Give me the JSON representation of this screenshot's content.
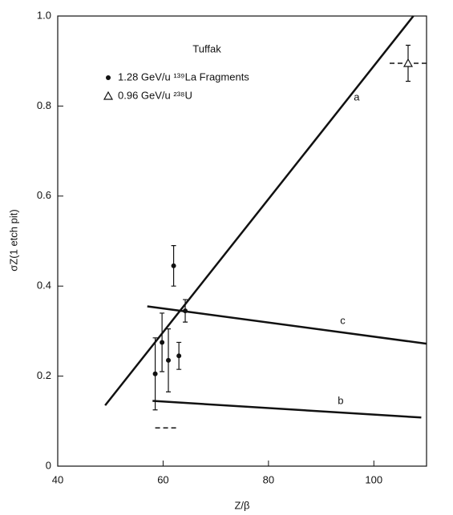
{
  "chart_data": {
    "type": "scatter",
    "xlabel": "Z/β",
    "ylabel": "σZ(1 etch pit)",
    "xlim": [
      40,
      110
    ],
    "ylim": [
      0,
      1
    ],
    "xticks": [
      40,
      60,
      80,
      100
    ],
    "yticks": [
      0,
      0.2,
      0.4,
      0.6,
      0.8,
      {
        "value": 1,
        "label": "1.0"
      }
    ],
    "legend_title": "Tuffak",
    "series": [
      {
        "name": "1.28 GeV/u ¹³⁹La Fragments",
        "marker": "filled-circle",
        "color": "#111111",
        "x": [
          58.5,
          59.8,
          61,
          62,
          63,
          64.2
        ],
        "values": [
          0.205,
          0.275,
          0.235,
          0.445,
          0.245,
          0.345
        ],
        "yerr": [
          0.08,
          0.065,
          0.07,
          0.045,
          0.03,
          0.025
        ]
      },
      {
        "name": "0.96 GeV/u ²³⁸U",
        "marker": "open-triangle",
        "color": "#111111",
        "x": [
          106.5
        ],
        "values": [
          0.895
        ],
        "yerr": [
          0.04
        ],
        "xerr": [
          3.5
        ]
      }
    ],
    "lines": [
      {
        "label": "a",
        "x": [
          49,
          107.5
        ],
        "y": [
          0.135,
          1.0
        ]
      },
      {
        "label": "c",
        "x": [
          57,
          110
        ],
        "y": [
          0.355,
          0.272
        ]
      },
      {
        "label": "b",
        "x": [
          58,
          109
        ],
        "y": [
          0.145,
          0.108
        ]
      }
    ],
    "dashed_segment": {
      "x": [
        58.5,
        62.5
      ],
      "y": [
        0.085,
        0.085
      ]
    }
  }
}
